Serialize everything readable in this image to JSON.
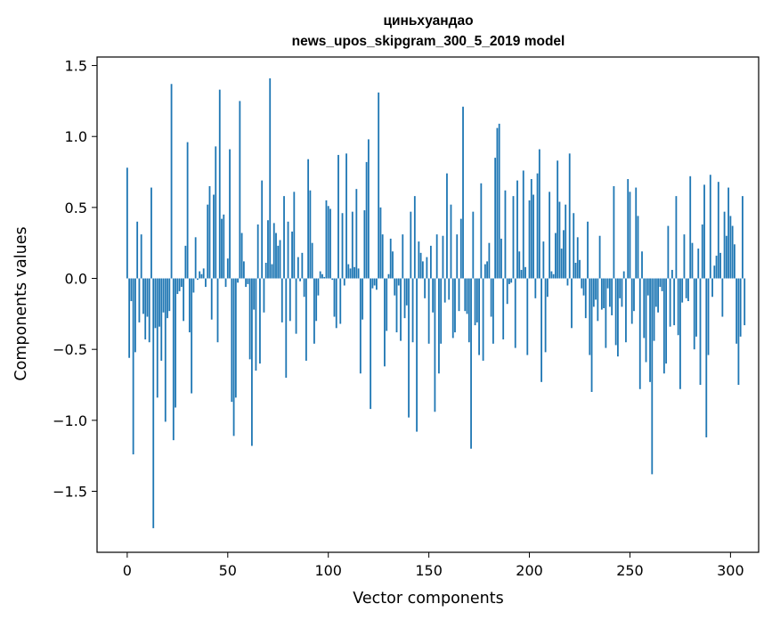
{
  "chart_data": {
    "type": "bar",
    "title": "циньхуандао",
    "subtitle": "news_upos_skipgram_300_5_2019 model",
    "xlabel": "Vector components",
    "ylabel": "Components values",
    "xlim": [
      -15,
      314
    ],
    "ylim": [
      -1.93,
      1.56
    ],
    "xticks": [
      0,
      50,
      100,
      150,
      200,
      250,
      300
    ],
    "yticks": [
      -1.5,
      -1.0,
      -0.5,
      0.0,
      0.5,
      1.0,
      1.5
    ],
    "ytick_labels": [
      "−1.5",
      "−1.0",
      "−0.5",
      "0.0",
      "0.5",
      "1.0",
      "1.5"
    ],
    "bar_color": "#1f77b4",
    "series": [
      {
        "name": "циньхуандао",
        "x_start": 0,
        "values": [
          0.78,
          -0.56,
          -0.16,
          -1.24,
          -0.52,
          0.4,
          -0.31,
          0.31,
          -0.25,
          -0.43,
          -0.27,
          -0.45,
          0.64,
          -1.76,
          -0.35,
          -0.84,
          -0.34,
          -0.58,
          -0.24,
          -1.01,
          -0.28,
          -0.23,
          1.37,
          -1.14,
          -0.91,
          -0.11,
          -0.09,
          -0.06,
          -0.3,
          0.23,
          0.96,
          -0.38,
          -0.81,
          -0.1,
          0.29,
          -0.01,
          0.05,
          0.03,
          0.07,
          -0.06,
          0.52,
          0.65,
          -0.29,
          0.59,
          0.93,
          -0.45,
          1.33,
          0.42,
          0.45,
          -0.06,
          0.14,
          0.91,
          -0.87,
          -1.11,
          -0.84,
          -0.03,
          1.25,
          0.32,
          0.12,
          -0.06,
          -0.04,
          -0.57,
          -1.18,
          -0.22,
          -0.65,
          0.38,
          -0.6,
          0.69,
          -0.24,
          0.11,
          0.41,
          1.41,
          0.1,
          0.39,
          0.32,
          0.23,
          0.27,
          -0.31,
          0.58,
          -0.7,
          0.4,
          -0.3,
          0.33,
          0.61,
          -0.39,
          0.15,
          -0.02,
          0.18,
          -0.13,
          -0.58,
          0.84,
          0.62,
          0.25,
          -0.46,
          -0.3,
          -0.12,
          0.05,
          0.03,
          0.01,
          0.55,
          0.51,
          0.49,
          -0.01,
          -0.27,
          -0.35,
          0.87,
          -0.32,
          0.46,
          -0.05,
          0.88,
          0.1,
          0.07,
          0.47,
          0.08,
          0.63,
          0.07,
          -0.67,
          -0.29,
          0.48,
          0.82,
          0.98,
          -0.92,
          -0.07,
          -0.05,
          -0.08,
          1.31,
          0.5,
          0.31,
          -0.62,
          -0.37,
          0.03,
          0.28,
          0.19,
          -0.12,
          -0.38,
          -0.05,
          -0.44,
          0.31,
          -0.28,
          -0.19,
          -0.98,
          0.47,
          -0.45,
          0.58,
          -1.08,
          0.26,
          0.18,
          0.12,
          -0.14,
          0.15,
          -0.46,
          0.23,
          -0.24,
          -0.94,
          0.31,
          -0.67,
          -0.46,
          0.3,
          -0.17,
          0.74,
          -0.15,
          0.52,
          -0.42,
          -0.38,
          0.31,
          -0.23,
          0.42,
          1.21,
          -0.23,
          -0.25,
          -0.45,
          -1.2,
          0.47,
          -0.33,
          -0.31,
          -0.54,
          0.67,
          -0.58,
          0.1,
          0.12,
          0.25,
          -0.27,
          -0.46,
          0.85,
          1.06,
          1.09,
          0.28,
          -0.43,
          0.62,
          -0.18,
          -0.04,
          -0.03,
          0.58,
          -0.49,
          0.69,
          0.19,
          0.06,
          0.76,
          0.08,
          -0.54,
          0.55,
          0.7,
          0.59,
          -0.14,
          0.74,
          0.91,
          -0.73,
          0.26,
          -0.52,
          -0.13,
          0.61,
          0.05,
          0.03,
          0.32,
          0.83,
          0.54,
          0.21,
          0.34,
          0.52,
          -0.05,
          0.88,
          -0.35,
          0.46,
          0.11,
          0.29,
          0.13,
          -0.07,
          -0.12,
          -0.28,
          0.4,
          -0.54,
          -0.8,
          -0.2,
          -0.15,
          -0.3,
          0.3,
          -0.22,
          -0.21,
          -0.49,
          -0.07,
          -0.2,
          -0.26,
          0.65,
          -0.47,
          -0.55,
          -0.14,
          -0.2,
          0.05,
          -0.45,
          0.7,
          0.61,
          -0.32,
          -0.23,
          0.64,
          0.44,
          -0.78,
          0.19,
          -0.42,
          -0.59,
          -0.12,
          -0.73,
          -1.38,
          -0.44,
          -0.2,
          -0.24,
          -0.06,
          -0.09,
          -0.67,
          -0.6,
          0.37,
          -0.34,
          0.06,
          -0.33,
          0.58,
          -0.4,
          -0.78,
          -0.17,
          0.31,
          -0.14,
          -0.16,
          0.72,
          0.25,
          -0.5,
          -0.41,
          0.21,
          -0.75,
          0.38,
          0.66,
          -1.12,
          -0.54,
          0.73,
          -0.13,
          0.09,
          0.16,
          0.68,
          0.18,
          -0.27,
          0.47,
          0.3,
          0.64,
          0.44,
          0.37,
          0.24,
          -0.46,
          -0.75,
          -0.41,
          0.58,
          -0.33
        ]
      }
    ]
  }
}
